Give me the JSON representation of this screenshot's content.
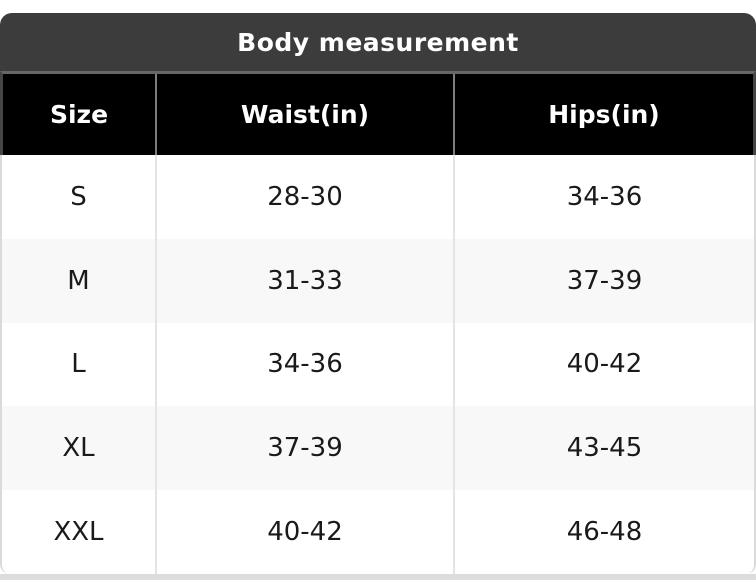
{
  "chart_data": {
    "type": "table",
    "title": "Body measurement",
    "columns": [
      "Size",
      "Waist(in)",
      "Hips(in)"
    ],
    "rows": [
      [
        "S",
        "28-30",
        "34-36"
      ],
      [
        "M",
        "31-33",
        "37-39"
      ],
      [
        "L",
        "34-36",
        "40-42"
      ],
      [
        "XL",
        "37-39",
        "43-45"
      ],
      [
        "XXL",
        "40-42",
        "46-48"
      ]
    ]
  },
  "colors": {
    "title_bar_bg": "#3c3c3c",
    "title_text": "#ffffff",
    "header_bg": "#000000",
    "header_text": "#ffffff",
    "row_bg": "#ffffff",
    "row_alt_bg": "#f8f8f8",
    "body_text": "#1a1a1a",
    "header_divider": "#7d7d7d",
    "body_divider": "#e4e4e4",
    "bottom_strip": "#dcdcdc"
  }
}
